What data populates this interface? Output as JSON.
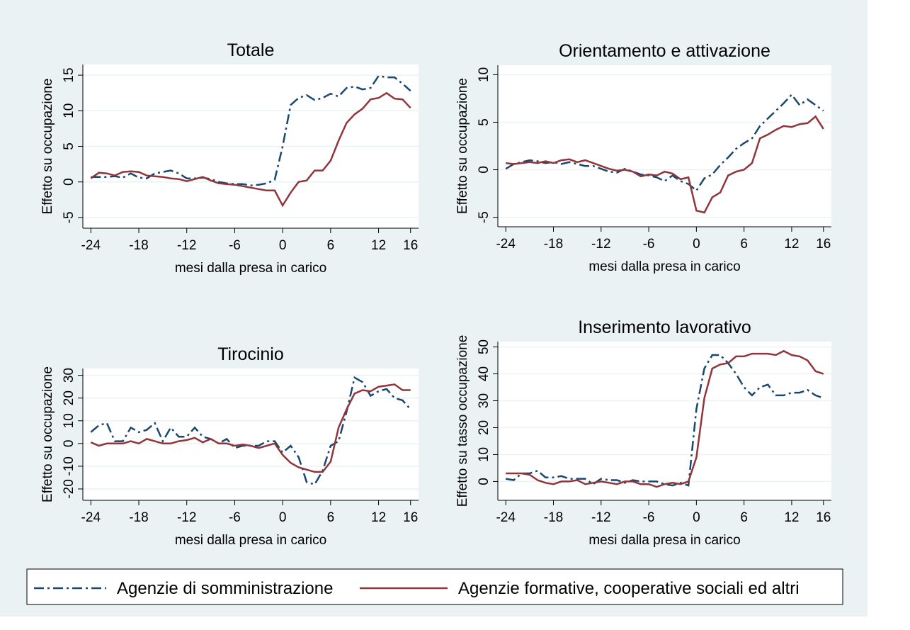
{
  "chart_data": [
    {
      "type": "line",
      "title": "Totale",
      "xlabel": "mesi dalla presa in carico",
      "ylabel": "Effetto su occupazione",
      "x": [
        -24,
        -23,
        -22,
        -21,
        -20,
        -19,
        -18,
        -17,
        -16,
        -15,
        -14,
        -13,
        -12,
        -11,
        -10,
        -9,
        -8,
        -7,
        -6,
        -5,
        -4,
        -3,
        -2,
        -1,
        0,
        1,
        2,
        3,
        4,
        5,
        6,
        7,
        8,
        9,
        10,
        11,
        12,
        13,
        14,
        15,
        16
      ],
      "xlim": [
        -25,
        17
      ],
      "xticks": [
        -24,
        -18,
        -12,
        -6,
        0,
        6,
        12,
        16
      ],
      "ylim": [
        -6.5,
        16.5
      ],
      "yticks": [
        -5,
        0,
        5,
        10,
        15
      ],
      "grid": true,
      "series": [
        {
          "name": "Agenzie di somministrazione",
          "color": "#1a476f",
          "dash": "dashdot",
          "values": [
            0.7,
            0.7,
            0.7,
            0.8,
            0.6,
            1.2,
            0.6,
            0.5,
            1.2,
            1.4,
            1.6,
            1.2,
            0.5,
            0.5,
            0.6,
            0.4,
            0,
            -0.2,
            -0.3,
            -0.3,
            -0.5,
            -0.4,
            -0.2,
            0.3,
            5,
            10.8,
            11.8,
            12.2,
            11.5,
            11.8,
            12.4,
            12,
            13.2,
            13.4,
            13,
            13.2,
            14.9,
            14.7,
            14.7,
            13.8,
            12.8
          ]
        },
        {
          "name": "Agenzie formative, cooperative sociali ed altri",
          "color": "#90353b",
          "dash": "solid",
          "values": [
            0.5,
            1.3,
            1.2,
            0.9,
            1.4,
            1.5,
            1.4,
            0.9,
            0.8,
            0.7,
            0.5,
            0.4,
            0.1,
            0.4,
            0.7,
            0.2,
            -0.2,
            -0.3,
            -0.4,
            -0.6,
            -0.8,
            -1,
            -1.2,
            -1.2,
            -3.3,
            -1.5,
            0,
            0.2,
            1.6,
            1.6,
            3,
            5.8,
            8.3,
            9.5,
            10.3,
            11.6,
            11.8,
            12.5,
            11.7,
            11.6,
            10.4
          ]
        }
      ]
    },
    {
      "type": "line",
      "title": "Orientamento e attivazione",
      "xlabel": "mesi dalla presa in carico",
      "ylabel": "Effetto su occupazione",
      "x": [
        -24,
        -23,
        -22,
        -21,
        -20,
        -19,
        -18,
        -17,
        -16,
        -15,
        -14,
        -13,
        -12,
        -11,
        -10,
        -9,
        -8,
        -7,
        -6,
        -5,
        -4,
        -3,
        -2,
        -1,
        0,
        1,
        2,
        3,
        4,
        5,
        6,
        7,
        8,
        9,
        10,
        11,
        12,
        13,
        14,
        15,
        16
      ],
      "xlim": [
        -25,
        17
      ],
      "xticks": [
        -24,
        -18,
        -12,
        -6,
        0,
        6,
        12,
        16
      ],
      "ylim": [
        -6,
        11
      ],
      "yticks": [
        -5,
        0,
        5,
        10
      ],
      "grid": true,
      "series": [
        {
          "color": "#1a476f",
          "dash": "dashdot",
          "values": [
            0.1,
            0.6,
            0.8,
            1,
            0.9,
            0.7,
            0.8,
            0.6,
            0.8,
            0.6,
            0.4,
            0.4,
            0.1,
            -0.2,
            -0.3,
            0.1,
            -0.2,
            -0.5,
            -0.6,
            -0.8,
            -1.2,
            -0.6,
            -1.2,
            -1.5,
            -2.2,
            -0.9,
            -0.5,
            0.5,
            1.3,
            2.2,
            2.8,
            3.3,
            4.6,
            5.4,
            6.2,
            7,
            7.9,
            6.8,
            7.4,
            6.8,
            6.2
          ]
        },
        {
          "color": "#90353b",
          "dash": "solid",
          "values": [
            0.7,
            0.6,
            0.7,
            0.8,
            0.7,
            0.9,
            0.7,
            1,
            1.1,
            0.8,
            1,
            0.7,
            0.4,
            0.1,
            -0.1,
            0,
            -0.2,
            -0.7,
            -0.5,
            -0.6,
            -0.2,
            -0.4,
            -1,
            -0.8,
            -4.3,
            -4.5,
            -2.9,
            -2.4,
            -0.6,
            -0.2,
            0,
            0.7,
            3.3,
            3.7,
            4.2,
            4.6,
            4.5,
            4.8,
            4.9,
            5.6,
            4.3
          ]
        }
      ]
    },
    {
      "type": "line",
      "title": "Tirocinio",
      "xlabel": "mesi dalla presa in carico",
      "ylabel": "Effetto su occupazione",
      "x": [
        -24,
        -23,
        -22,
        -21,
        -20,
        -19,
        -18,
        -17,
        -16,
        -15,
        -14,
        -13,
        -12,
        -11,
        -10,
        -9,
        -8,
        -7,
        -6,
        -5,
        -4,
        -3,
        -2,
        -1,
        0,
        1,
        2,
        3,
        4,
        5,
        6,
        7,
        8,
        9,
        10,
        11,
        12,
        13,
        14,
        15,
        16
      ],
      "xlim": [
        -25,
        17
      ],
      "xticks": [
        -24,
        -18,
        -12,
        -6,
        0,
        6,
        12,
        16
      ],
      "ylim": [
        -25,
        33
      ],
      "yticks": [
        -20,
        -10,
        0,
        10,
        20,
        30
      ],
      "grid": true,
      "series": [
        {
          "color": "#1a476f",
          "dash": "dashdot",
          "values": [
            5,
            8,
            9,
            1,
            1,
            7,
            5,
            6,
            9,
            1,
            7,
            3,
            3,
            7,
            3,
            2,
            0,
            2,
            -2,
            -1,
            -1,
            -1,
            1,
            1,
            -4,
            -1,
            -6,
            -17,
            -18,
            -12,
            -1,
            1,
            14,
            29,
            27,
            21,
            23,
            24,
            20,
            19,
            15
          ]
        },
        {
          "color": "#90353b",
          "dash": "solid",
          "values": [
            0.5,
            -1,
            0,
            0,
            0,
            1,
            0,
            2,
            1,
            0,
            0,
            1,
            1.5,
            2.5,
            0.5,
            2,
            0,
            0,
            -1,
            -0.5,
            -1,
            -2,
            -1,
            0,
            -5,
            -8.5,
            -10.5,
            -11.5,
            -12.5,
            -12.5,
            -8,
            7,
            15,
            22,
            23.5,
            23,
            25,
            25.5,
            26,
            23.5,
            23.5
          ]
        }
      ]
    },
    {
      "type": "line",
      "title": "Inserimento lavorativo",
      "xlabel": "mesi dalla presa in carico",
      "ylabel": "Effetto su tasso occupazione",
      "x": [
        -24,
        -23,
        -22,
        -21,
        -20,
        -19,
        -18,
        -17,
        -16,
        -15,
        -14,
        -13,
        -12,
        -11,
        -10,
        -9,
        -8,
        -7,
        -6,
        -5,
        -4,
        -3,
        -2,
        -1,
        0,
        1,
        2,
        3,
        4,
        5,
        6,
        7,
        8,
        9,
        10,
        11,
        12,
        13,
        14,
        15,
        16
      ],
      "xlim": [
        -25,
        17
      ],
      "xticks": [
        -24,
        -18,
        -12,
        -6,
        0,
        6,
        12,
        16
      ],
      "ylim": [
        -7,
        52
      ],
      "yticks": [
        0,
        10,
        20,
        30,
        40,
        50
      ],
      "grid": true,
      "series": [
        {
          "color": "#1a476f",
          "dash": "dashdot",
          "values": [
            1,
            0.5,
            3,
            3,
            4,
            1.5,
            1.5,
            2,
            1,
            1,
            1,
            -1,
            1,
            0.5,
            0.5,
            -0.5,
            0.5,
            0,
            0,
            0,
            -1,
            -1.5,
            -0.5,
            -1.5,
            27,
            42,
            47,
            47,
            44,
            40,
            35,
            32,
            35,
            36,
            32,
            32,
            33,
            33,
            34,
            32,
            31
          ]
        },
        {
          "color": "#90353b",
          "dash": "solid",
          "values": [
            3,
            3,
            3,
            2.5,
            0.5,
            -0.5,
            -1,
            0,
            0,
            0.5,
            -1,
            -0.5,
            0,
            -0.5,
            -1,
            0,
            0,
            -1,
            -1,
            -2,
            -1,
            -0.5,
            -1,
            0,
            9,
            31,
            42,
            43.5,
            44,
            46.5,
            46.5,
            47.5,
            47.5,
            47.5,
            47,
            48.5,
            47,
            46.5,
            45,
            41,
            40
          ]
        }
      ]
    }
  ]
}
